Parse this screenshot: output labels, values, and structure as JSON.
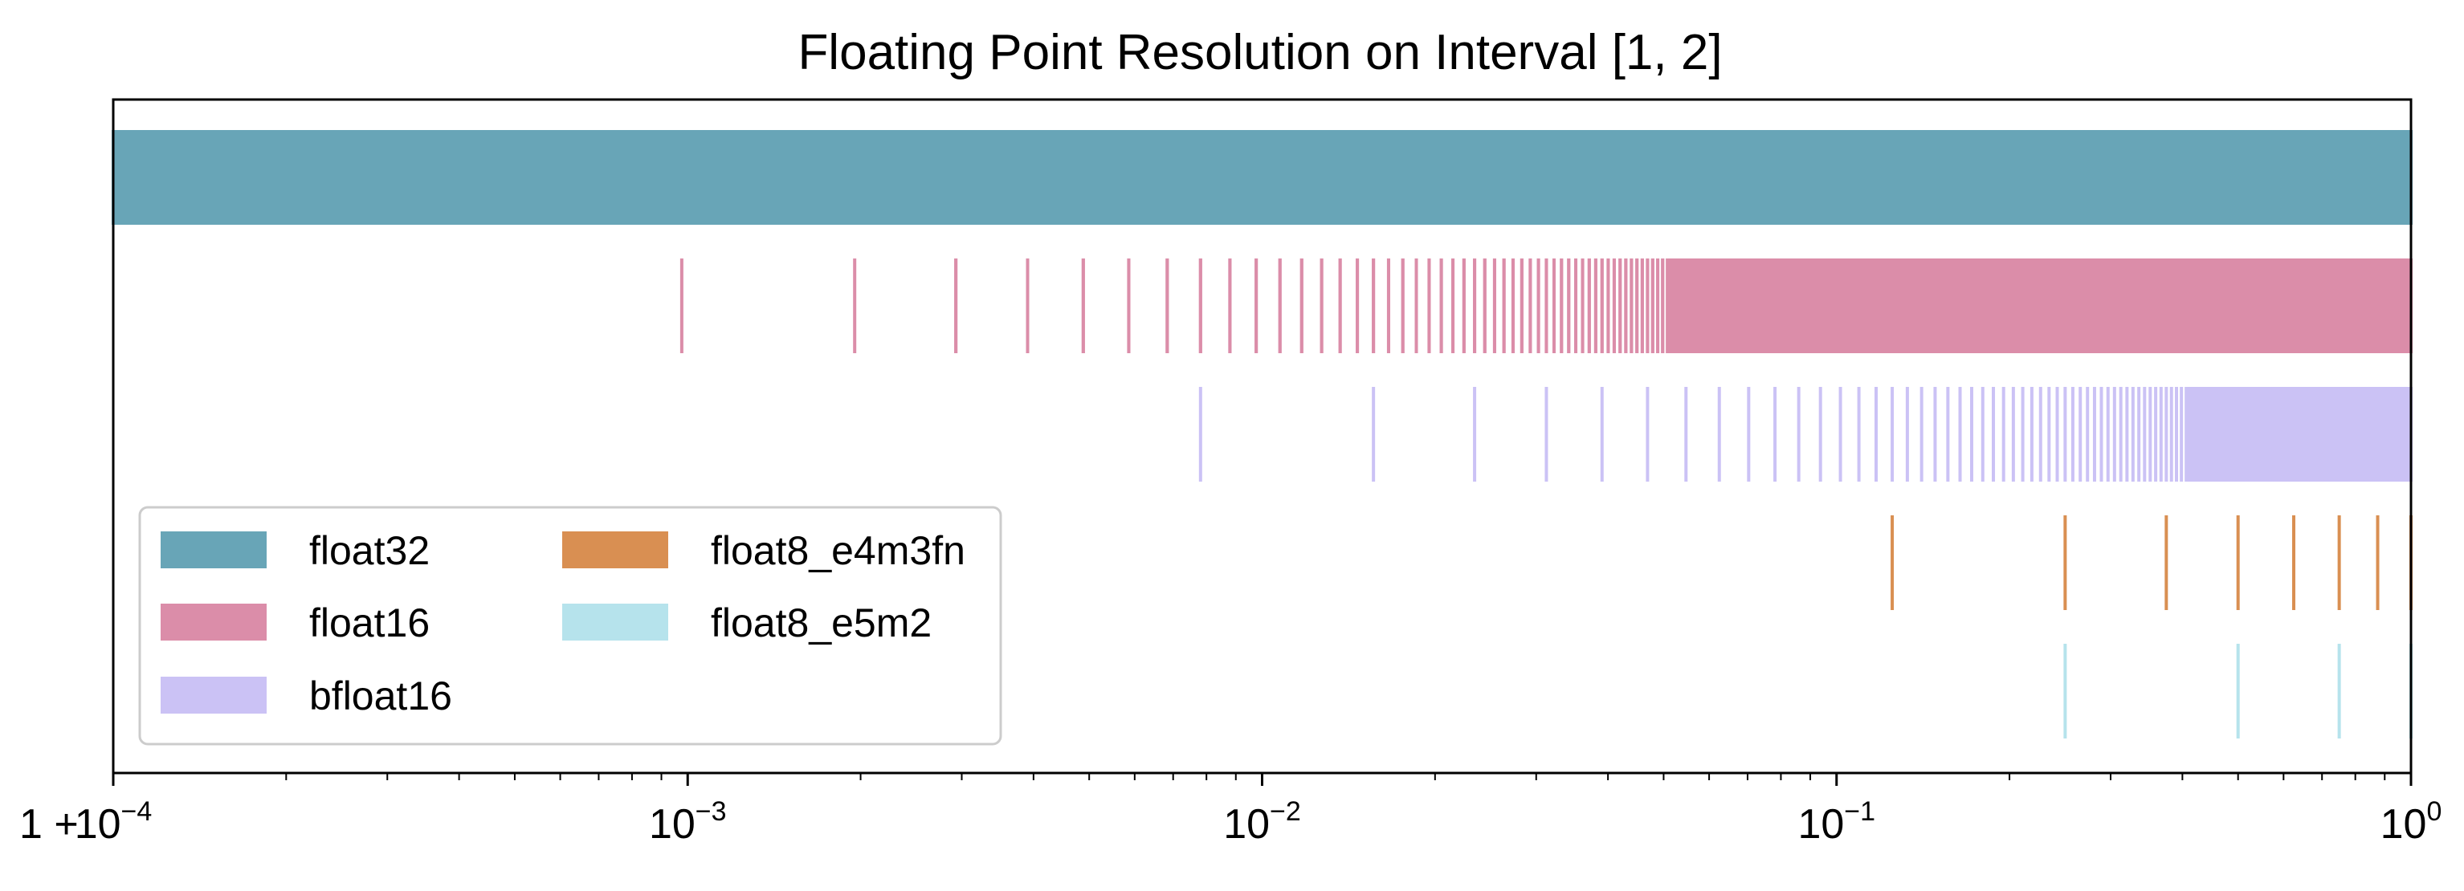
{
  "chart_data": {
    "type": "scatter",
    "title": "Floating Point Resolution on Interval [1, 2]",
    "xscale": "log",
    "xlim": [
      0.0001,
      1
    ],
    "x_offset_label": "1 +",
    "x_ticks": [
      {
        "base": "10",
        "exp": "−4"
      },
      {
        "base": "10",
        "exp": "−3"
      },
      {
        "base": "10",
        "exp": "−2"
      },
      {
        "base": "10",
        "exp": "−1"
      },
      {
        "base": "10",
        "exp": "0"
      }
    ],
    "yticks": "none",
    "grid": false,
    "legend_position": "lower-left",
    "legend_columns": 2,
    "series": [
      {
        "name": "float32",
        "color": "#68a5b7",
        "mantissa_bits": 23,
        "min_exp": -14,
        "max_exp": -1
      },
      {
        "name": "float16",
        "color": "#db8da9",
        "mantissa_bits": 10,
        "min_exp": -10,
        "max_exp": -1
      },
      {
        "name": "bfloat16",
        "color": "#cbc2f5",
        "mantissa_bits": 7,
        "min_exp": -7,
        "max_exp": -1
      },
      {
        "name": "float8_e4m3fn",
        "color": "#d98f52",
        "mantissa_bits": 3,
        "min_exp": -3,
        "max_exp": -1
      },
      {
        "name": "float8_e5m2",
        "color": "#b6e3ec",
        "mantissa_bits": 2,
        "min_exp": -2,
        "max_exp": -1
      }
    ]
  }
}
